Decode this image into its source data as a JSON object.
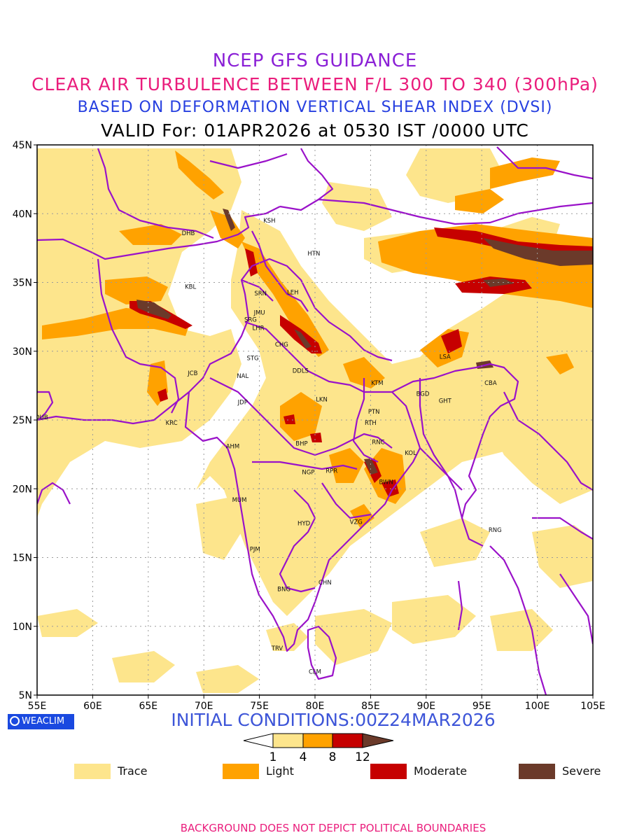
{
  "header": {
    "line1": "NCEP GFS GUIDANCE",
    "line2": "CLEAR AIR TURBULENCE BETWEEN F/L 300 TO 340 (300hPa)",
    "line3": "BASED ON DEFORMATION VERTICAL SHEAR INDEX (DVSI)",
    "line4": "VALID For: 01APR2026 at 0530 IST /0000 UTC"
  },
  "map": {
    "lon_min": 55,
    "lon_max": 105,
    "lat_min": 5,
    "lat_max": 45,
    "lon_ticks": [
      "55E",
      "60E",
      "65E",
      "70E",
      "75E",
      "80E",
      "85E",
      "90E",
      "95E",
      "100E",
      "105E"
    ],
    "lat_ticks": [
      "5N",
      "10N",
      "15N",
      "20N",
      "25N",
      "30N",
      "35N",
      "40N",
      "45N"
    ],
    "stations": [
      {
        "code": "KSH",
        "lon": 75.9,
        "lat": 39.5
      },
      {
        "code": "HTN",
        "lon": 79.9,
        "lat": 37.1
      },
      {
        "code": "DHB",
        "lon": 68.6,
        "lat": 38.6
      },
      {
        "code": "KBL",
        "lon": 68.8,
        "lat": 34.7
      },
      {
        "code": "SRN",
        "lon": 75.1,
        "lat": 34.2
      },
      {
        "code": "LEH",
        "lon": 78.0,
        "lat": 34.3
      },
      {
        "code": "JMU",
        "lon": 75.0,
        "lat": 32.8
      },
      {
        "code": "SRG",
        "lon": 74.2,
        "lat": 32.3
      },
      {
        "code": "LHR",
        "lon": 74.9,
        "lat": 31.7
      },
      {
        "code": "CHG",
        "lon": 77.0,
        "lat": 30.5
      },
      {
        "code": "STG",
        "lon": 74.4,
        "lat": 29.5
      },
      {
        "code": "DDLS",
        "lon": 78.7,
        "lat": 28.6
      },
      {
        "code": "JCB",
        "lon": 69.0,
        "lat": 28.4
      },
      {
        "code": "NAL",
        "lon": 73.5,
        "lat": 28.2
      },
      {
        "code": "LSA",
        "lon": 91.7,
        "lat": 29.6
      },
      {
        "code": "CBA",
        "lon": 95.8,
        "lat": 27.7
      },
      {
        "code": "KTM",
        "lon": 85.6,
        "lat": 27.7
      },
      {
        "code": "BGD",
        "lon": 89.7,
        "lat": 26.9
      },
      {
        "code": "GHT",
        "lon": 91.7,
        "lat": 26.4
      },
      {
        "code": "LKN",
        "lon": 80.6,
        "lat": 26.5
      },
      {
        "code": "JDP",
        "lon": 73.5,
        "lat": 26.3
      },
      {
        "code": "PTN",
        "lon": 85.3,
        "lat": 25.6
      },
      {
        "code": "DUB",
        "lon": 55.4,
        "lat": 25.2
      },
      {
        "code": "KRC",
        "lon": 67.1,
        "lat": 24.8
      },
      {
        "code": "RTH",
        "lon": 85.0,
        "lat": 24.8
      },
      {
        "code": "BHP",
        "lon": 78.8,
        "lat": 23.3
      },
      {
        "code": "AHM",
        "lon": 72.6,
        "lat": 23.1
      },
      {
        "code": "RNC",
        "lon": 85.7,
        "lat": 23.4
      },
      {
        "code": "KOL",
        "lon": 88.6,
        "lat": 22.6
      },
      {
        "code": "NGP",
        "lon": 79.4,
        "lat": 21.2
      },
      {
        "code": "RPR",
        "lon": 81.5,
        "lat": 21.3
      },
      {
        "code": "BWN",
        "lon": 86.4,
        "lat": 20.5
      },
      {
        "code": "MUM",
        "lon": 73.2,
        "lat": 19.2
      },
      {
        "code": "HYD",
        "lon": 79.0,
        "lat": 17.5
      },
      {
        "code": "VZG",
        "lon": 83.7,
        "lat": 17.6
      },
      {
        "code": "RNG",
        "lon": 96.2,
        "lat": 17.0
      },
      {
        "code": "PJM",
        "lon": 74.6,
        "lat": 15.6
      },
      {
        "code": "CHN",
        "lon": 80.9,
        "lat": 13.2
      },
      {
        "code": "BNG",
        "lon": 77.2,
        "lat": 12.7
      },
      {
        "code": "TRV",
        "lon": 76.6,
        "lat": 8.4
      },
      {
        "code": "CLM",
        "lon": 80.0,
        "lat": 6.7
      }
    ]
  },
  "initial_conditions": "INITIAL CONDITIONS:00Z24MAR2026",
  "colorbar": {
    "ticks": [
      "1",
      "4",
      "8",
      "12"
    ]
  },
  "legend": [
    {
      "label": "Trace",
      "color": "#fde58c"
    },
    {
      "label": "Light",
      "color": "#ffa200"
    },
    {
      "label": "Moderate",
      "color": "#c60000"
    },
    {
      "label": "Severe",
      "color": "#6b3a2a"
    }
  ],
  "logo": "WEACLIM",
  "footer": "BACKGROUND DOES NOT DEPICT POLITICAL BOUNDARIES",
  "colors": {
    "trace": "#fde58c",
    "light": "#ffa200",
    "moderate": "#c60000",
    "severe": "#6b3a2a",
    "boundary": "#9a12c9"
  }
}
